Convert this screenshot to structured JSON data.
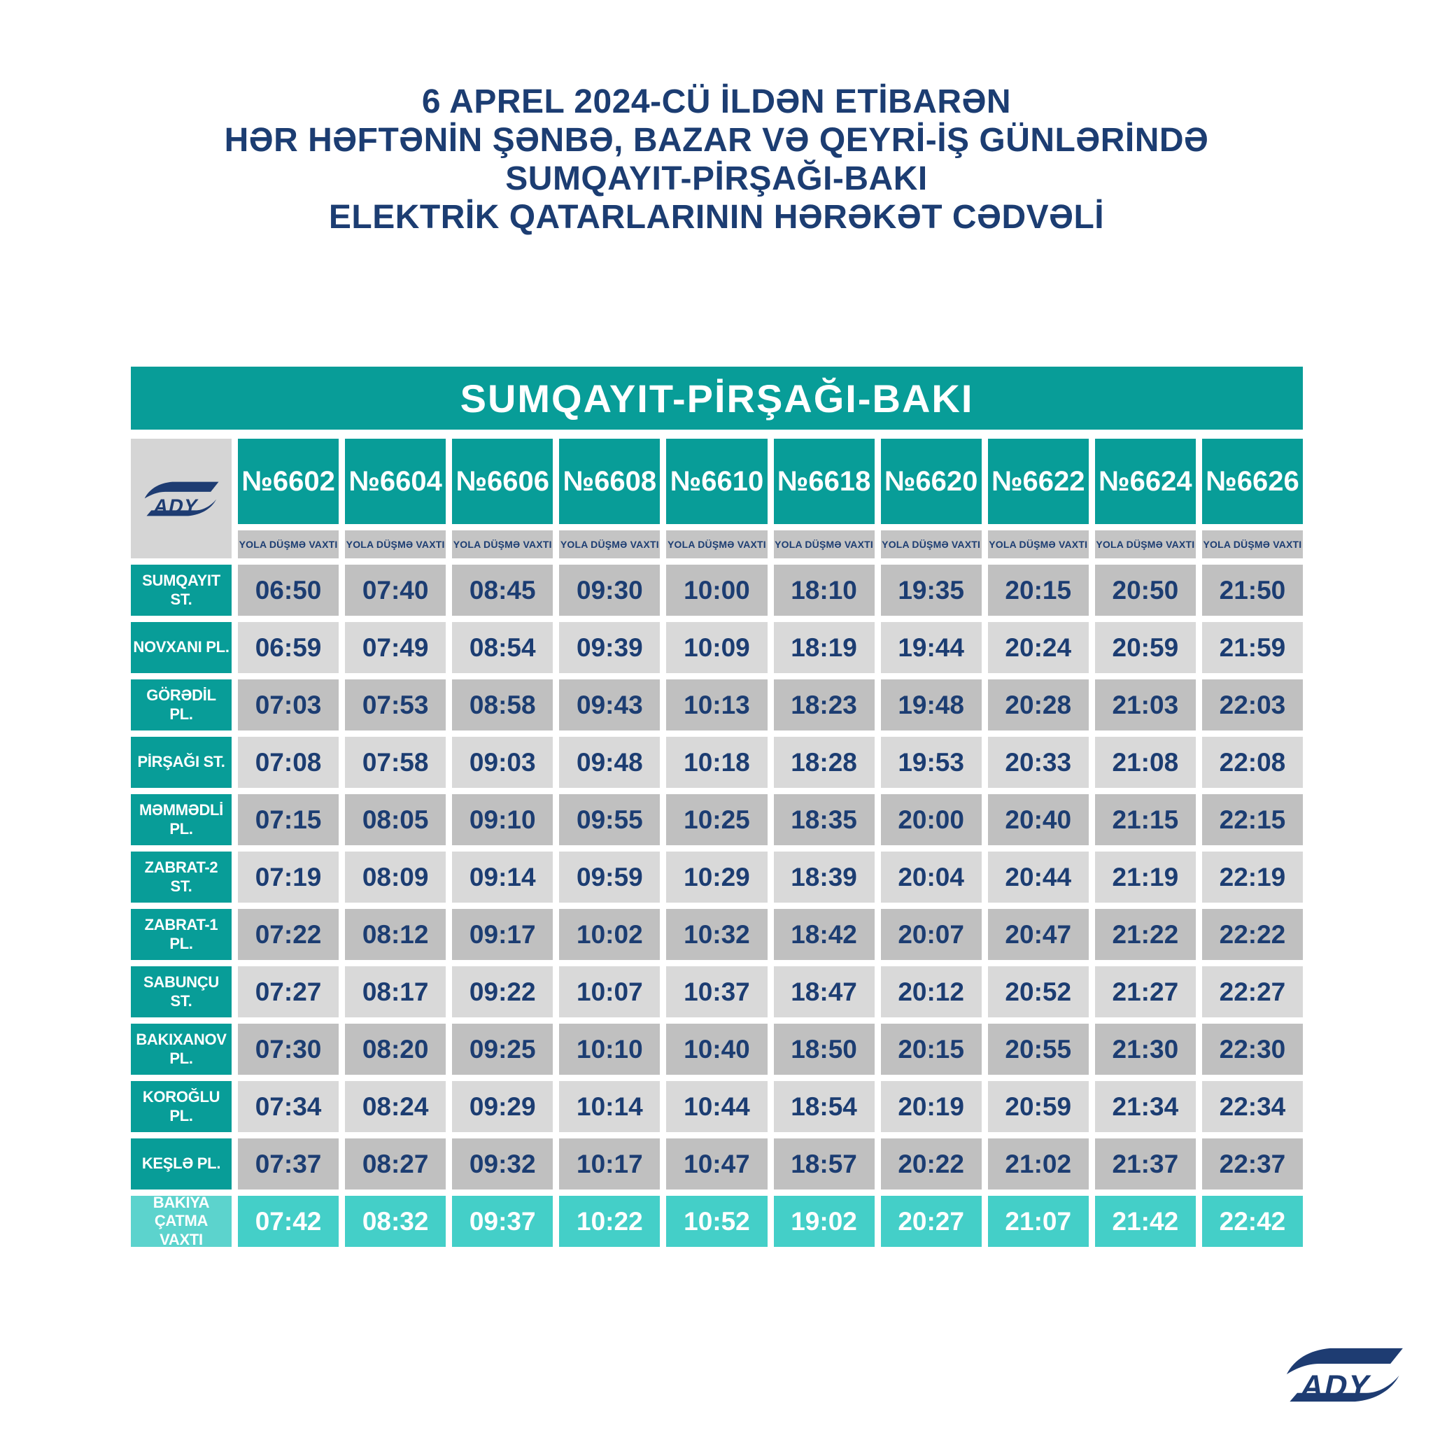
{
  "title": {
    "lines": [
      "6 APREL 2024-CÜ İLDƏN ETİBARƏN",
      "HƏR HƏFTƏNİN ŞƏNBƏ, BAZAR VƏ QEYRİ-İŞ GÜNLƏRİNDƏ",
      "SUMQAYIT-PİRŞAĞI-BAKI",
      "ELEKTRİK QATARLARININ HƏRƏKƏT CƏDVƏLİ"
    ]
  },
  "table": {
    "banner": "SUMQAYIT-PİRŞAĞI-BAKI",
    "logo_text": "ADY",
    "subheader": "YOLA DÜŞMƏ VAXTI",
    "trains": [
      "№6602",
      "№6604",
      "№6606",
      "№6608",
      "№6610",
      "№6618",
      "№6620",
      "№6622",
      "№6624",
      "№6626"
    ],
    "rows": [
      {
        "station": "SUMQAYIT ST.",
        "times": [
          "06:50",
          "07:40",
          "08:45",
          "09:30",
          "10:00",
          "18:10",
          "19:35",
          "20:15",
          "20:50",
          "21:50"
        ]
      },
      {
        "station": "NOVXANI PL.",
        "times": [
          "06:59",
          "07:49",
          "08:54",
          "09:39",
          "10:09",
          "18:19",
          "19:44",
          "20:24",
          "20:59",
          "21:59"
        ]
      },
      {
        "station": "GÖRƏDİL PL.",
        "times": [
          "07:03",
          "07:53",
          "08:58",
          "09:43",
          "10:13",
          "18:23",
          "19:48",
          "20:28",
          "21:03",
          "22:03"
        ]
      },
      {
        "station": "PİRŞAĞI ST.",
        "times": [
          "07:08",
          "07:58",
          "09:03",
          "09:48",
          "10:18",
          "18:28",
          "19:53",
          "20:33",
          "21:08",
          "22:08"
        ]
      },
      {
        "station": "MƏMMƏDLİ PL.",
        "times": [
          "07:15",
          "08:05",
          "09:10",
          "09:55",
          "10:25",
          "18:35",
          "20:00",
          "20:40",
          "21:15",
          "22:15"
        ]
      },
      {
        "station": "ZABRAT-2 ST.",
        "times": [
          "07:19",
          "08:09",
          "09:14",
          "09:59",
          "10:29",
          "18:39",
          "20:04",
          "20:44",
          "21:19",
          "22:19"
        ]
      },
      {
        "station": "ZABRAT-1 PL.",
        "times": [
          "07:22",
          "08:12",
          "09:17",
          "10:02",
          "10:32",
          "18:42",
          "20:07",
          "20:47",
          "21:22",
          "22:22"
        ]
      },
      {
        "station": "SABUNÇU ST.",
        "times": [
          "07:27",
          "08:17",
          "09:22",
          "10:07",
          "10:37",
          "18:47",
          "20:12",
          "20:52",
          "21:27",
          "22:27"
        ]
      },
      {
        "station": "BAKIXANOV PL.",
        "times": [
          "07:30",
          "08:20",
          "09:25",
          "10:10",
          "10:40",
          "18:50",
          "20:15",
          "20:55",
          "21:30",
          "22:30"
        ]
      },
      {
        "station": "KOROĞLU PL.",
        "times": [
          "07:34",
          "08:24",
          "09:29",
          "10:14",
          "10:44",
          "18:54",
          "20:19",
          "20:59",
          "21:34",
          "22:34"
        ]
      },
      {
        "station": "KEŞLƏ PL.",
        "times": [
          "07:37",
          "08:27",
          "09:32",
          "10:17",
          "10:47",
          "18:57",
          "20:22",
          "21:02",
          "21:37",
          "22:37"
        ]
      }
    ],
    "arrival_row": {
      "station": "BAKIYA ÇATMA VAXTI",
      "times": [
        "07:42",
        "08:32",
        "09:37",
        "10:22",
        "10:52",
        "19:02",
        "20:27",
        "21:07",
        "21:42",
        "22:42"
      ]
    }
  },
  "colors": {
    "teal": "#089D98",
    "navy": "#1C3D72",
    "arrival_cell_teal": "#44CFC8",
    "arrival_label_teal": "#5CD3CD",
    "row_gray_dark": "#C0C0C0",
    "row_gray_light": "#D9D9D9",
    "subheader_gray": "#C4C4C4",
    "logo_cell_gray": "#D5D5D5"
  }
}
